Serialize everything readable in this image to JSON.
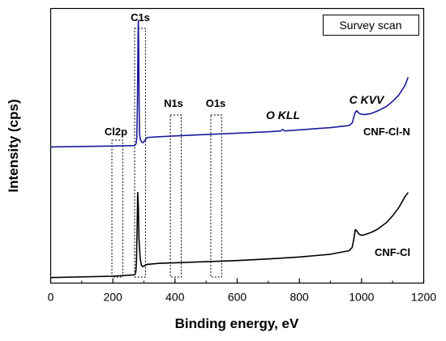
{
  "chart_data": {
    "type": "line",
    "xlabel": "Binding energy, eV",
    "ylabel": "Intensity (cps)",
    "xlim": [
      0,
      1200
    ],
    "xticks": [
      0,
      200,
      400,
      600,
      800,
      1000,
      1200
    ],
    "ylim": [
      0,
      100
    ],
    "yticks_shown": false,
    "legend_box_text": "Survey scan",
    "series": [
      {
        "name": "CNF-Cl-N",
        "color": "#1a1a99",
        "x": [
          0,
          200,
          270,
          275,
          277,
          279,
          281,
          282,
          283,
          284,
          285,
          286,
          288,
          292,
          296,
          300,
          310,
          350,
          400,
          500,
          600,
          700,
          740,
          746,
          752,
          800,
          900,
          960,
          970,
          975,
          980,
          985,
          990,
          995,
          1000,
          1010,
          1030,
          1050,
          1080,
          1100,
          1120,
          1140,
          1150
        ],
        "y": [
          49.6,
          49.9,
          50.1,
          50.8,
          53.0,
          64.0,
          88.0,
          95.5,
          88.0,
          70.0,
          59.0,
          54.5,
          52.5,
          51.5,
          51.1,
          51.5,
          53.0,
          53.3,
          53.6,
          54.1,
          54.6,
          55.1,
          55.4,
          56.0,
          55.4,
          55.8,
          56.6,
          57.4,
          58.3,
          60.5,
          62.2,
          62.8,
          62.0,
          61.7,
          61.5,
          61.4,
          61.7,
          62.6,
          64.3,
          66.2,
          68.5,
          72.0,
          75.0
        ]
      },
      {
        "name": "CNF-Cl",
        "color": "#000000",
        "x": [
          0,
          200,
          270,
          274,
          276,
          278,
          280,
          282,
          284,
          288,
          292,
          296,
          300,
          310,
          350,
          400,
          500,
          600,
          700,
          800,
          900,
          960,
          970,
          975,
          980,
          985,
          990,
          995,
          1000,
          1010,
          1030,
          1050,
          1080,
          1100,
          1120,
          1140,
          1150
        ],
        "y": [
          2.0,
          2.5,
          3.0,
          4.0,
          8.0,
          20.0,
          33.0,
          28.0,
          16.0,
          9.0,
          6.5,
          6.0,
          6.2,
          6.8,
          7.2,
          7.4,
          7.8,
          8.2,
          8.8,
          9.5,
          10.5,
          11.8,
          13.0,
          16.0,
          19.5,
          19.0,
          18.0,
          17.6,
          17.4,
          17.6,
          18.4,
          19.5,
          22.0,
          24.5,
          27.5,
          31.5,
          33.0
        ]
      }
    ],
    "annotations": [
      {
        "text": "C1s",
        "box": [
          270,
          305
        ]
      },
      {
        "text": "Cl2p",
        "box": [
          197,
          232
        ]
      },
      {
        "text": "N1s",
        "box": [
          385,
          420
        ]
      },
      {
        "text": "O1s",
        "box": [
          515,
          550
        ]
      },
      {
        "text": "O KLL",
        "x": 750
      },
      {
        "text": "C KVV",
        "x": 990
      }
    ]
  }
}
